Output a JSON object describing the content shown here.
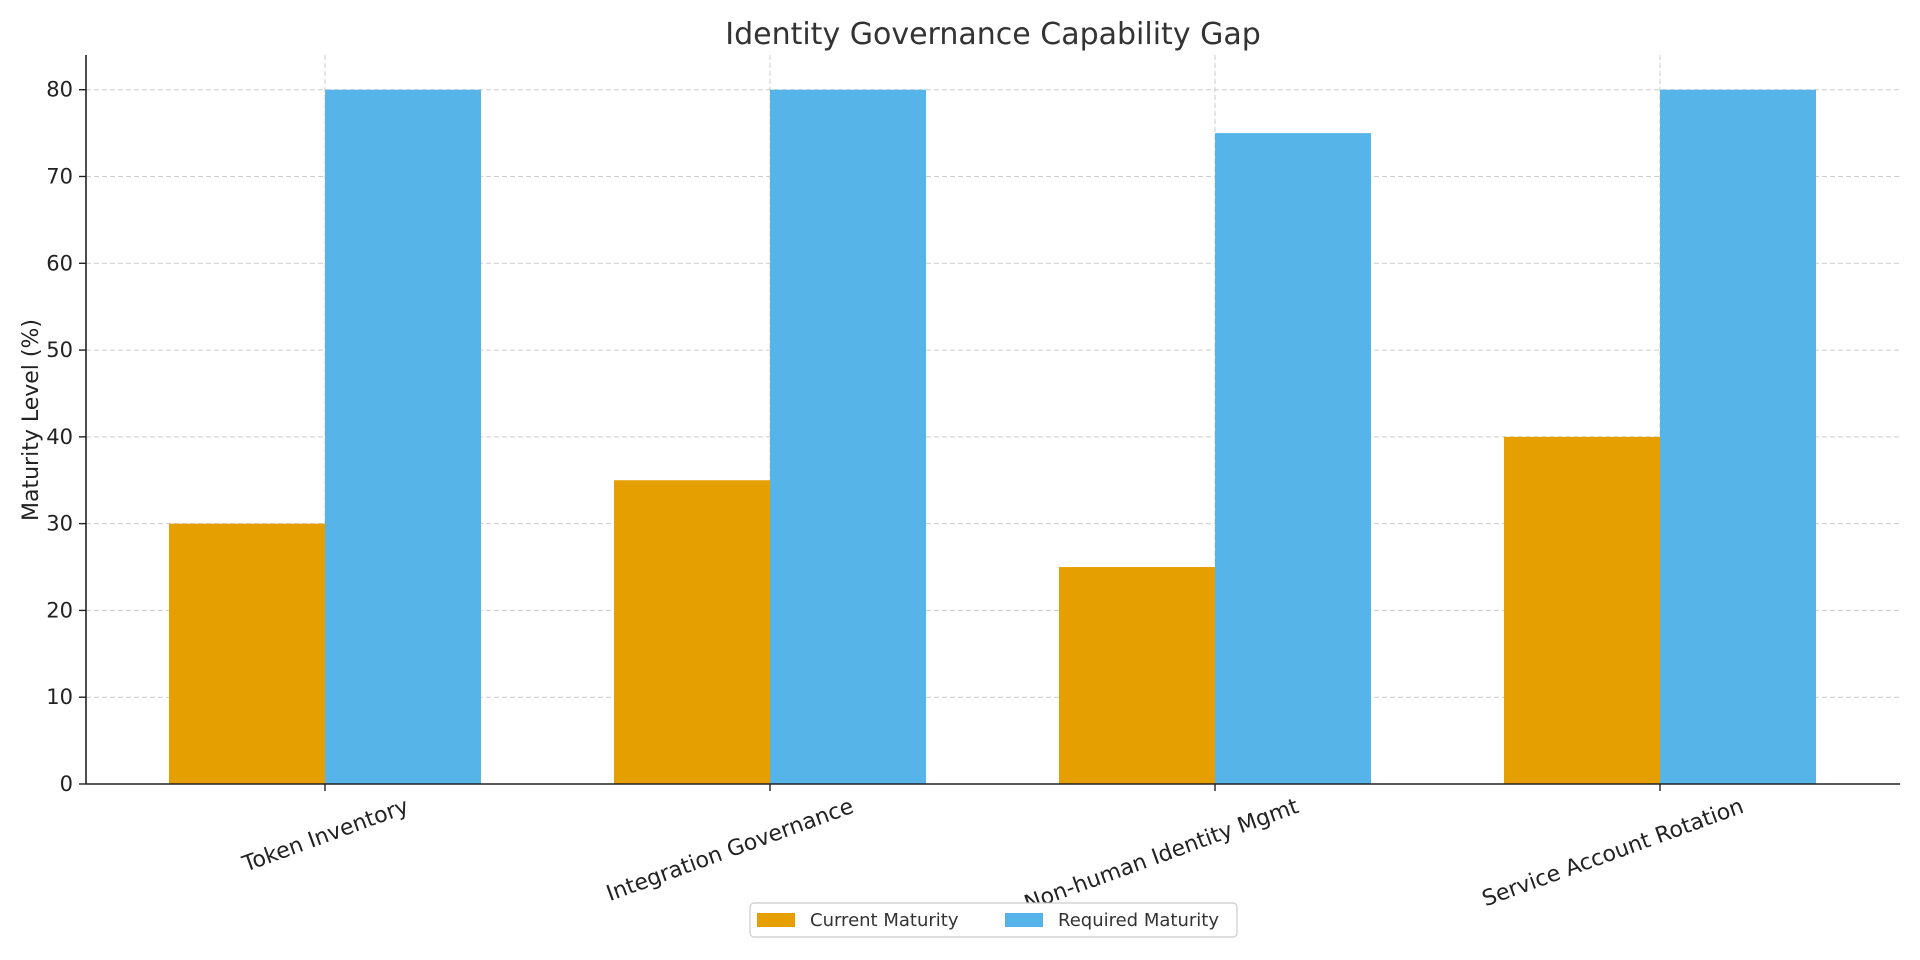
{
  "chart_data": {
    "type": "bar",
    "title": "Identity Governance Capability Gap",
    "xlabel": "",
    "ylabel": "Maturity Level (%)",
    "ylim": [
      0,
      84
    ],
    "yticks": [
      0,
      10,
      20,
      30,
      40,
      50,
      60,
      70,
      80
    ],
    "grid": true,
    "legend_position": "bottom-center",
    "categories": [
      "Token Inventory",
      "Integration Governance",
      "Non-human Identity Mgmt",
      "Service Account Rotation"
    ],
    "series": [
      {
        "name": "Current Maturity",
        "color": "#E69F00",
        "values": [
          30,
          35,
          25,
          40
        ]
      },
      {
        "name": "Required Maturity",
        "color": "#56B4E9",
        "values": [
          80,
          80,
          75,
          80
        ]
      }
    ]
  }
}
